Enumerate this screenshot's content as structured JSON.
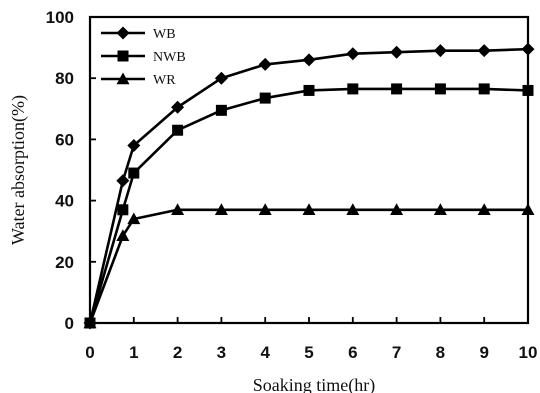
{
  "chart_data": {
    "type": "line",
    "title": "",
    "xlabel": "Soaking time(hr)",
    "ylabel": "Water absorption(%)",
    "xlim": [
      0,
      10
    ],
    "ylim": [
      0,
      100
    ],
    "xticks": [
      0,
      1,
      2,
      3,
      4,
      5,
      6,
      7,
      8,
      9,
      10
    ],
    "yticks": [
      0,
      20,
      40,
      60,
      80,
      100
    ],
    "grid": false,
    "legend_position": "top-left",
    "series": [
      {
        "name": "WB",
        "marker": "diamond",
        "color": "#000000",
        "x": [
          0,
          0.75,
          1,
          2,
          3,
          4,
          5,
          6,
          7,
          8,
          9,
          10
        ],
        "y": [
          0,
          46.5,
          58,
          70.5,
          80,
          84.5,
          86,
          88,
          88.5,
          89,
          89,
          89.5
        ]
      },
      {
        "name": "NWB",
        "marker": "square",
        "color": "#000000",
        "x": [
          0,
          0.75,
          1,
          2,
          3,
          4,
          5,
          6,
          7,
          8,
          9,
          10
        ],
        "y": [
          0,
          37,
          49,
          63,
          69.5,
          73.5,
          76,
          76.5,
          76.5,
          76.5,
          76.5,
          76
        ]
      },
      {
        "name": "WR",
        "marker": "triangle",
        "color": "#000000",
        "x": [
          0,
          0.75,
          1,
          2,
          3,
          4,
          5,
          6,
          7,
          8,
          9,
          10
        ],
        "y": [
          0,
          28.5,
          34,
          37,
          37,
          37,
          37,
          37,
          37,
          37,
          37,
          37
        ]
      }
    ]
  }
}
